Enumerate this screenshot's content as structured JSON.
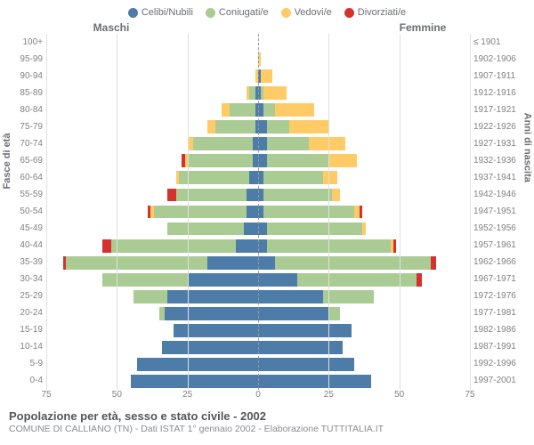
{
  "type": "population-pyramid",
  "legend": [
    {
      "label": "Celibi/Nubili",
      "color": "#4d7ca8"
    },
    {
      "label": "Coniugati/e",
      "color": "#abcb95"
    },
    {
      "label": "Vedovi/e",
      "color": "#ffcb66"
    },
    {
      "label": "Divorziati/e",
      "color": "#d4322e"
    }
  ],
  "headers": {
    "male": "Maschi",
    "female": "Femmine"
  },
  "axis": {
    "left_title": "Fasce di età",
    "right_title": "Anni di nascita",
    "x_max": 75,
    "x_ticks": [
      75,
      50,
      25,
      0,
      25,
      50,
      75
    ],
    "grid_color": "#e0e0e0",
    "center_line_color": "#999999"
  },
  "colors": {
    "celibi": "#4d7ca8",
    "coniugati": "#abcb95",
    "vedovi": "#ffcb66",
    "divorziati": "#d4322e",
    "background": "#ffffff",
    "label_text": "#808286"
  },
  "rows": [
    {
      "age": "100+",
      "birth": "≤ 1901",
      "m": {
        "celibi": 0,
        "coniugati": 0,
        "vedovi": 0,
        "divorziati": 0
      },
      "f": {
        "celibi": 0,
        "coniugati": 0,
        "vedovi": 0,
        "divorziati": 0
      }
    },
    {
      "age": "95-99",
      "birth": "1902-1906",
      "m": {
        "celibi": 0,
        "coniugati": 0,
        "vedovi": 0,
        "divorziati": 0
      },
      "f": {
        "celibi": 0,
        "coniugati": 0,
        "vedovi": 1,
        "divorziati": 0
      }
    },
    {
      "age": "90-94",
      "birth": "1907-1911",
      "m": {
        "celibi": 0,
        "coniugati": 0,
        "vedovi": 1,
        "divorziati": 0
      },
      "f": {
        "celibi": 1,
        "coniugati": 0,
        "vedovi": 4,
        "divorziati": 0
      }
    },
    {
      "age": "85-89",
      "birth": "1912-1916",
      "m": {
        "celibi": 1,
        "coniugati": 2,
        "vedovi": 1,
        "divorziati": 0
      },
      "f": {
        "celibi": 1,
        "coniugati": 1,
        "vedovi": 8,
        "divorziati": 0
      }
    },
    {
      "age": "80-84",
      "birth": "1917-1921",
      "m": {
        "celibi": 1,
        "coniugati": 9,
        "vedovi": 3,
        "divorziati": 0
      },
      "f": {
        "celibi": 2,
        "coniugati": 4,
        "vedovi": 14,
        "divorziati": 0
      }
    },
    {
      "age": "75-79",
      "birth": "1922-1926",
      "m": {
        "celibi": 1,
        "coniugati": 14,
        "vedovi": 3,
        "divorziati": 0
      },
      "f": {
        "celibi": 3,
        "coniugati": 8,
        "vedovi": 14,
        "divorziati": 0
      }
    },
    {
      "age": "70-74",
      "birth": "1927-1931",
      "m": {
        "celibi": 2,
        "coniugati": 21,
        "vedovi": 2,
        "divorziati": 0
      },
      "f": {
        "celibi": 3,
        "coniugati": 15,
        "vedovi": 13,
        "divorziati": 0
      }
    },
    {
      "age": "65-69",
      "birth": "1932-1936",
      "m": {
        "celibi": 2,
        "coniugati": 23,
        "vedovi": 1,
        "divorziati": 1
      },
      "f": {
        "celibi": 3,
        "coniugati": 22,
        "vedovi": 10,
        "divorziati": 0
      }
    },
    {
      "age": "60-64",
      "birth": "1937-1941",
      "m": {
        "celibi": 3,
        "coniugati": 25,
        "vedovi": 1,
        "divorziati": 0
      },
      "f": {
        "celibi": 2,
        "coniugati": 21,
        "vedovi": 5,
        "divorziati": 0
      }
    },
    {
      "age": "55-59",
      "birth": "1942-1946",
      "m": {
        "celibi": 4,
        "coniugati": 25,
        "vedovi": 0,
        "divorziati": 3
      },
      "f": {
        "celibi": 2,
        "coniugati": 24,
        "vedovi": 3,
        "divorziati": 0
      }
    },
    {
      "age": "50-54",
      "birth": "1947-1951",
      "m": {
        "celibi": 4,
        "coniugati": 33,
        "vedovi": 1,
        "divorziati": 1
      },
      "f": {
        "celibi": 2,
        "coniugati": 32,
        "vedovi": 2,
        "divorziati": 1
      }
    },
    {
      "age": "45-49",
      "birth": "1952-1956",
      "m": {
        "celibi": 5,
        "coniugati": 27,
        "vedovi": 0,
        "divorziati": 0
      },
      "f": {
        "celibi": 3,
        "coniugati": 34,
        "vedovi": 1,
        "divorziati": 0
      }
    },
    {
      "age": "40-44",
      "birth": "1957-1961",
      "m": {
        "celibi": 8,
        "coniugati": 44,
        "vedovi": 0,
        "divorziati": 3
      },
      "f": {
        "celibi": 3,
        "coniugati": 44,
        "vedovi": 1,
        "divorziati": 1
      }
    },
    {
      "age": "35-39",
      "birth": "1962-1966",
      "m": {
        "celibi": 18,
        "coniugati": 50,
        "vedovi": 0,
        "divorziati": 1
      },
      "f": {
        "celibi": 6,
        "coniugati": 55,
        "vedovi": 0,
        "divorziati": 2
      }
    },
    {
      "age": "30-34",
      "birth": "1967-1971",
      "m": {
        "celibi": 25,
        "coniugati": 30,
        "vedovi": 0,
        "divorziati": 0
      },
      "f": {
        "celibi": 14,
        "coniugati": 42,
        "vedovi": 0,
        "divorziati": 2
      }
    },
    {
      "age": "25-29",
      "birth": "1972-1976",
      "m": {
        "celibi": 32,
        "coniugati": 12,
        "vedovi": 0,
        "divorziati": 0
      },
      "f": {
        "celibi": 23,
        "coniugati": 18,
        "vedovi": 0,
        "divorziati": 0
      }
    },
    {
      "age": "20-24",
      "birth": "1977-1981",
      "m": {
        "celibi": 33,
        "coniugati": 2,
        "vedovi": 0,
        "divorziati": 0
      },
      "f": {
        "celibi": 25,
        "coniugati": 4,
        "vedovi": 0,
        "divorziati": 0
      }
    },
    {
      "age": "15-19",
      "birth": "1982-1986",
      "m": {
        "celibi": 30,
        "coniugati": 0,
        "vedovi": 0,
        "divorziati": 0
      },
      "f": {
        "celibi": 33,
        "coniugati": 0,
        "vedovi": 0,
        "divorziati": 0
      }
    },
    {
      "age": "10-14",
      "birth": "1987-1991",
      "m": {
        "celibi": 34,
        "coniugati": 0,
        "vedovi": 0,
        "divorziati": 0
      },
      "f": {
        "celibi": 30,
        "coniugati": 0,
        "vedovi": 0,
        "divorziati": 0
      }
    },
    {
      "age": "5-9",
      "birth": "1992-1996",
      "m": {
        "celibi": 43,
        "coniugati": 0,
        "vedovi": 0,
        "divorziati": 0
      },
      "f": {
        "celibi": 34,
        "coniugati": 0,
        "vedovi": 0,
        "divorziati": 0
      }
    },
    {
      "age": "0-4",
      "birth": "1997-2001",
      "m": {
        "celibi": 45,
        "coniugati": 0,
        "vedovi": 0,
        "divorziati": 0
      },
      "f": {
        "celibi": 40,
        "coniugati": 0,
        "vedovi": 0,
        "divorziati": 0
      }
    }
  ],
  "footer": {
    "title": "Popolazione per età, sesso e stato civile - 2002",
    "subtitle": "COMUNE DI CALLIANO (TN) - Dati ISTAT 1° gennaio 2002 - Elaborazione TUTTITALIA.IT"
  }
}
